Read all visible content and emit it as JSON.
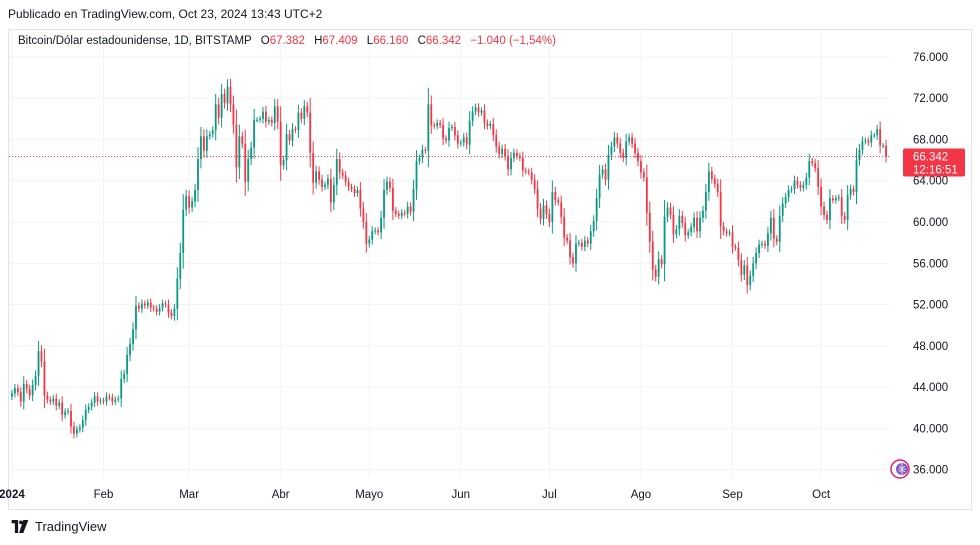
{
  "header": {
    "published": "Publicado en TradingView.com, Oct 23, 2024 13:43 UTC+2"
  },
  "legend": {
    "symbol": "Bitcoin/Dólar estadounidense, 1D, BITSTAMP",
    "o_label": "O",
    "o_value": "67.382",
    "h_label": "H",
    "h_value": "67.409",
    "l_label": "L",
    "l_value": "66.160",
    "c_label": "C",
    "c_value": "66.342",
    "change": "−1.040 (−1,54%)"
  },
  "price_tag": {
    "price": "66.342",
    "countdown": "12:16:51"
  },
  "footer": {
    "brand": "TradingView"
  },
  "colors": {
    "up": "#089981",
    "down": "#f23645",
    "grid": "#f0f3fa",
    "axis_text": "#131722"
  },
  "chart_data": {
    "type": "candlestick",
    "title": "Bitcoin/Dólar estadounidense, 1D, BITSTAMP",
    "y_tick_labels": [
      "76.000",
      "72.000",
      "68.000",
      "64.000",
      "60.000",
      "56.000",
      "52.000",
      "48.000",
      "44.000",
      "40.000",
      "36.000"
    ],
    "y_ticks": [
      76,
      72,
      68,
      64,
      60,
      56,
      52,
      48,
      44,
      40,
      36
    ],
    "ylim": [
      35.2,
      78.6
    ],
    "x_tick_labels": [
      "2024",
      "Feb",
      "Mar",
      "Abr",
      "Mayo",
      "Jun",
      "Jul",
      "Ago",
      "Sep",
      "Oct"
    ],
    "x_tick_days": [
      0,
      31,
      60,
      91,
      121,
      152,
      182,
      213,
      244,
      274
    ],
    "xlim_days": [
      -1,
      297
    ],
    "last_price": 66.342,
    "y_unit": "thousand USD",
    "grid": true,
    "closes": [
      [
        0,
        43.4
      ],
      [
        1,
        43.9
      ],
      [
        2,
        43.5
      ],
      [
        3,
        42.6
      ],
      [
        4,
        44.3
      ],
      [
        5,
        43.8
      ],
      [
        6,
        43.2
      ],
      [
        7,
        44.2
      ],
      [
        8,
        45.1
      ],
      [
        9,
        47.5
      ],
      [
        10,
        46.5
      ],
      [
        11,
        43.2
      ],
      [
        12,
        42.8
      ],
      [
        13,
        42.6
      ],
      [
        14,
        42.9
      ],
      [
        15,
        42.2
      ],
      [
        16,
        42.5
      ],
      [
        17,
        41.3
      ],
      [
        18,
        41.6
      ],
      [
        19,
        41.7
      ],
      [
        20,
        40.2
      ],
      [
        21,
        39.5
      ],
      [
        22,
        39.9
      ],
      [
        23,
        40.1
      ],
      [
        24,
        40.8
      ],
      [
        25,
        41.8
      ],
      [
        26,
        42.1
      ],
      [
        27,
        42.5
      ],
      [
        28,
        43.1
      ],
      [
        29,
        42.6
      ],
      [
        30,
        42.7
      ],
      [
        31,
        42.6
      ],
      [
        32,
        43.1
      ],
      [
        33,
        43.0
      ],
      [
        34,
        42.6
      ],
      [
        35,
        42.8
      ],
      [
        36,
        42.9
      ],
      [
        37,
        44.8
      ],
      [
        38,
        45.3
      ],
      [
        39,
        47.1
      ],
      [
        40,
        48.2
      ],
      [
        41,
        49.6
      ],
      [
        42,
        51.9
      ],
      [
        43,
        51.6
      ],
      [
        44,
        52.1
      ],
      [
        45,
        51.9
      ],
      [
        46,
        52.2
      ],
      [
        47,
        51.7
      ],
      [
        48,
        51.6
      ],
      [
        49,
        51.3
      ],
      [
        50,
        51.7
      ],
      [
        51,
        52.1
      ],
      [
        52,
        52.0
      ],
      [
        53,
        51.2
      ],
      [
        54,
        50.9
      ],
      [
        55,
        51.6
      ],
      [
        56,
        54.5
      ],
      [
        57,
        57.0
      ],
      [
        58,
        61.2
      ],
      [
        59,
        62.5
      ],
      [
        60,
        61.4
      ],
      [
        61,
        62.0
      ],
      [
        62,
        63.1
      ],
      [
        63,
        66.1
      ],
      [
        64,
        68.3
      ],
      [
        65,
        66.9
      ],
      [
        66,
        68.3
      ],
      [
        67,
        68.5
      ],
      [
        68,
        68.9
      ],
      [
        69,
        71.4
      ],
      [
        70,
        70.1
      ],
      [
        71,
        72.4
      ],
      [
        72,
        71.5
      ],
      [
        73,
        73.1
      ],
      [
        74,
        71.4
      ],
      [
        75,
        69.4
      ],
      [
        76,
        65.3
      ],
      [
        77,
        68.3
      ],
      [
        78,
        67.6
      ],
      [
        79,
        63.9
      ],
      [
        80,
        66.1
      ],
      [
        81,
        67.2
      ],
      [
        82,
        69.9
      ],
      [
        83,
        69.9
      ],
      [
        84,
        70.0
      ],
      [
        85,
        70.7
      ],
      [
        86,
        69.7
      ],
      [
        87,
        69.9
      ],
      [
        88,
        69.6
      ],
      [
        89,
        71.2
      ],
      [
        90,
        69.7
      ],
      [
        91,
        65.5
      ],
      [
        92,
        66.0
      ],
      [
        93,
        68.5
      ],
      [
        94,
        67.9
      ],
      [
        95,
        69.0
      ],
      [
        96,
        68.9
      ],
      [
        97,
        70.6
      ],
      [
        98,
        70.0
      ],
      [
        99,
        71.2
      ],
      [
        100,
        70.6
      ],
      [
        101,
        66.7
      ],
      [
        102,
        63.8
      ],
      [
        103,
        64.9
      ],
      [
        104,
        64.1
      ],
      [
        105,
        63.4
      ],
      [
        106,
        63.6
      ],
      [
        107,
        64.2
      ],
      [
        108,
        61.9
      ],
      [
        109,
        63.6
      ],
      [
        110,
        66.1
      ],
      [
        111,
        64.8
      ],
      [
        112,
        64.5
      ],
      [
        113,
        63.9
      ],
      [
        114,
        63.4
      ],
      [
        115,
        63.2
      ],
      [
        116,
        62.8
      ],
      [
        117,
        63.1
      ],
      [
        118,
        61.3
      ],
      [
        119,
        60.0
      ],
      [
        120,
        57.9
      ],
      [
        121,
        58.3
      ],
      [
        122,
        59.1
      ],
      [
        123,
        59.2
      ],
      [
        124,
        59.0
      ],
      [
        125,
        60.4
      ],
      [
        126,
        63.1
      ],
      [
        127,
        63.9
      ],
      [
        128,
        63.3
      ],
      [
        129,
        61.1
      ],
      [
        130,
        60.8
      ],
      [
        131,
        60.6
      ],
      [
        132,
        60.9
      ],
      [
        133,
        60.8
      ],
      [
        134,
        61.5
      ],
      [
        135,
        61.0
      ],
      [
        136,
        63.2
      ],
      [
        137,
        65.9
      ],
      [
        138,
        66.2
      ],
      [
        139,
        67.0
      ],
      [
        140,
        66.9
      ],
      [
        141,
        71.4
      ],
      [
        142,
        69.4
      ],
      [
        143,
        69.3
      ],
      [
        144,
        69.6
      ],
      [
        145,
        69.4
      ],
      [
        146,
        68.1
      ],
      [
        147,
        67.9
      ],
      [
        148,
        69.1
      ],
      [
        149,
        69.2
      ],
      [
        150,
        68.4
      ],
      [
        151,
        67.6
      ],
      [
        152,
        67.7
      ],
      [
        153,
        68.2
      ],
      [
        154,
        67.5
      ],
      [
        155,
        69.8
      ],
      [
        156,
        70.7
      ],
      [
        157,
        71.1
      ],
      [
        158,
        70.6
      ],
      [
        159,
        70.8
      ],
      [
        160,
        69.6
      ],
      [
        161,
        69.3
      ],
      [
        162,
        69.5
      ],
      [
        163,
        68.4
      ],
      [
        164,
        67.3
      ],
      [
        165,
        66.6
      ],
      [
        166,
        67.1
      ],
      [
        167,
        66.4
      ],
      [
        168,
        65.1
      ],
      [
        169,
        66.2
      ],
      [
        170,
        66.7
      ],
      [
        171,
        66.4
      ],
      [
        172,
        66.2
      ],
      [
        173,
        65.0
      ],
      [
        174,
        64.9
      ],
      [
        175,
        64.8
      ],
      [
        176,
        64.1
      ],
      [
        177,
        63.2
      ],
      [
        178,
        61.3
      ],
      [
        179,
        60.3
      ],
      [
        180,
        61.6
      ],
      [
        181,
        60.8
      ],
      [
        182,
        60.0
      ],
      [
        183,
        62.9
      ],
      [
        184,
        62.1
      ],
      [
        185,
        61.9
      ],
      [
        186,
        60.5
      ],
      [
        187,
        58.5
      ],
      [
        188,
        58.2
      ],
      [
        189,
        56.6
      ],
      [
        190,
        56.0
      ],
      [
        191,
        57.9
      ],
      [
        192,
        58.0
      ],
      [
        193,
        57.6
      ],
      [
        194,
        58.2
      ],
      [
        195,
        57.9
      ],
      [
        196,
        59.1
      ],
      [
        197,
        60.1
      ],
      [
        198,
        62.3
      ],
      [
        199,
        64.6
      ],
      [
        200,
        65.1
      ],
      [
        201,
        64.1
      ],
      [
        202,
        66.5
      ],
      [
        203,
        67.3
      ],
      [
        204,
        68.2
      ],
      [
        205,
        67.6
      ],
      [
        206,
        66.7
      ],
      [
        207,
        66.2
      ],
      [
        208,
        67.8
      ],
      [
        209,
        68.2
      ],
      [
        210,
        67.6
      ],
      [
        211,
        66.7
      ],
      [
        212,
        65.9
      ],
      [
        213,
        64.8
      ],
      [
        214,
        64.3
      ],
      [
        215,
        60.9
      ],
      [
        216,
        58.1
      ],
      [
        217,
        55.4
      ],
      [
        218,
        54.7
      ],
      [
        219,
        56.4
      ],
      [
        220,
        55.9
      ],
      [
        221,
        60.5
      ],
      [
        222,
        61.4
      ],
      [
        223,
        60.7
      ],
      [
        224,
        58.8
      ],
      [
        225,
        59.3
      ],
      [
        226,
        60.6
      ],
      [
        227,
        59.9
      ],
      [
        228,
        58.7
      ],
      [
        229,
        59.0
      ],
      [
        230,
        59.5
      ],
      [
        231,
        60.4
      ],
      [
        232,
        59.1
      ],
      [
        233,
        60.4
      ],
      [
        234,
        61.1
      ],
      [
        235,
        62.9
      ],
      [
        236,
        64.9
      ],
      [
        237,
        64.2
      ],
      [
        238,
        63.7
      ],
      [
        239,
        62.9
      ],
      [
        240,
        59.6
      ],
      [
        241,
        59.1
      ],
      [
        242,
        58.9
      ],
      [
        243,
        59.0
      ],
      [
        244,
        57.6
      ],
      [
        245,
        57.5
      ],
      [
        246,
        56.3
      ],
      [
        247,
        54.9
      ],
      [
        248,
        55.8
      ],
      [
        249,
        53.9
      ],
      [
        250,
        54.8
      ],
      [
        251,
        56.0
      ],
      [
        252,
        57.0
      ],
      [
        253,
        57.8
      ],
      [
        254,
        57.9
      ],
      [
        255,
        57.7
      ],
      [
        256,
        58.9
      ],
      [
        257,
        60.4
      ],
      [
        258,
        58.4
      ],
      [
        259,
        58.1
      ],
      [
        260,
        60.6
      ],
      [
        261,
        61.8
      ],
      [
        262,
        62.4
      ],
      [
        263,
        63.1
      ],
      [
        264,
        63.2
      ],
      [
        265,
        64.0
      ],
      [
        266,
        63.6
      ],
      [
        267,
        63.3
      ],
      [
        268,
        63.6
      ],
      [
        269,
        64.3
      ],
      [
        270,
        65.9
      ],
      [
        271,
        65.7
      ],
      [
        272,
        65.2
      ],
      [
        273,
        63.4
      ],
      [
        274,
        61.5
      ],
      [
        275,
        60.7
      ],
      [
        276,
        60.2
      ],
      [
        277,
        62.3
      ],
      [
        278,
        62.1
      ],
      [
        279,
        62.3
      ],
      [
        280,
        62.4
      ],
      [
        281,
        60.6
      ],
      [
        282,
        60.2
      ],
      [
        283,
        62.6
      ],
      [
        284,
        63.2
      ],
      [
        285,
        62.9
      ],
      [
        286,
        66.0
      ],
      [
        287,
        67.0
      ],
      [
        288,
        67.8
      ],
      [
        289,
        67.9
      ],
      [
        290,
        67.7
      ],
      [
        291,
        68.4
      ],
      [
        292,
        68.4
      ],
      [
        293,
        69.0
      ],
      [
        294,
        67.4
      ],
      [
        295,
        67.4
      ],
      [
        296,
        66.342
      ]
    ]
  }
}
